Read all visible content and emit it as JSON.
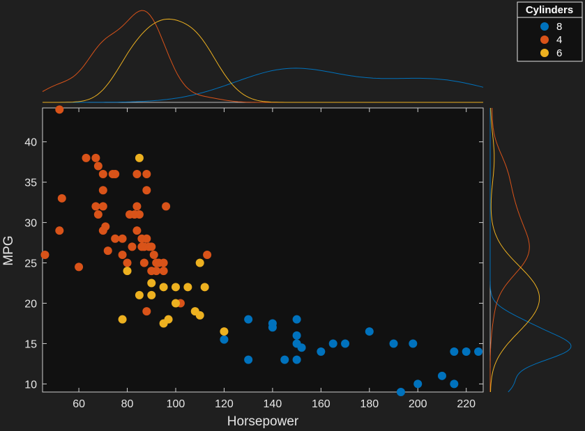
{
  "chart_data": {
    "type": "scatter",
    "xlabel": "Horsepower",
    "ylabel": "MPG",
    "xlim": [
      45,
      227
    ],
    "ylim": [
      9,
      44.2
    ],
    "xticks": [
      60,
      80,
      100,
      120,
      140,
      160,
      180,
      200,
      220
    ],
    "yticks": [
      10,
      15,
      20,
      25,
      30,
      35,
      40
    ],
    "legend": {
      "title": "Cylinders",
      "position": "top-right"
    },
    "series": [
      {
        "name": "8",
        "color": "#0072bd",
        "points": [
          [
            120,
            15.5
          ],
          [
            130,
            13
          ],
          [
            130,
            18
          ],
          [
            140,
            17.5
          ],
          [
            140,
            17
          ],
          [
            145,
            13
          ],
          [
            150,
            18
          ],
          [
            150,
            16
          ],
          [
            150,
            15
          ],
          [
            150,
            13
          ],
          [
            152,
            14.5
          ],
          [
            160,
            14
          ],
          [
            165,
            15
          ],
          [
            170,
            15
          ],
          [
            180,
            16.5
          ],
          [
            190,
            15
          ],
          [
            198,
            15
          ],
          [
            193,
            9
          ],
          [
            200,
            10
          ],
          [
            210,
            11
          ],
          [
            215,
            10
          ],
          [
            215,
            14
          ],
          [
            220,
            14
          ],
          [
            225,
            14
          ]
        ]
      },
      {
        "name": "4",
        "color": "#d95319",
        "points": [
          [
            46,
            26
          ],
          [
            52,
            44
          ],
          [
            52,
            29
          ],
          [
            53,
            33
          ],
          [
            60,
            24.5
          ],
          [
            63,
            38
          ],
          [
            67,
            38
          ],
          [
            67,
            32
          ],
          [
            68,
            37
          ],
          [
            68,
            31
          ],
          [
            70,
            36
          ],
          [
            70,
            34
          ],
          [
            70,
            32
          ],
          [
            70,
            29
          ],
          [
            71,
            29.5
          ],
          [
            72,
            26.5
          ],
          [
            74,
            36
          ],
          [
            75,
            36
          ],
          [
            75,
            28
          ],
          [
            78,
            28
          ],
          [
            78,
            26
          ],
          [
            80,
            25
          ],
          [
            81,
            31
          ],
          [
            82,
            27
          ],
          [
            83,
            31
          ],
          [
            84,
            36
          ],
          [
            84,
            32
          ],
          [
            84,
            29
          ],
          [
            85,
            31
          ],
          [
            86,
            28
          ],
          [
            86,
            27
          ],
          [
            87,
            27
          ],
          [
            87,
            25
          ],
          [
            88,
            36
          ],
          [
            88,
            34
          ],
          [
            88,
            28
          ],
          [
            88,
            19
          ],
          [
            89,
            27
          ],
          [
            90,
            27
          ],
          [
            90,
            24
          ],
          [
            91,
            26
          ],
          [
            92,
            25
          ],
          [
            92,
            24
          ],
          [
            93,
            25
          ],
          [
            95,
            24
          ],
          [
            95,
            25
          ],
          [
            96,
            32
          ],
          [
            102,
            20
          ],
          [
            113,
            26
          ]
        ]
      },
      {
        "name": "6",
        "color": "#edb120",
        "points": [
          [
            78,
            18
          ],
          [
            80,
            24
          ],
          [
            85,
            38
          ],
          [
            85,
            21
          ],
          [
            90,
            22.5
          ],
          [
            90,
            21
          ],
          [
            95,
            22
          ],
          [
            95,
            17.5
          ],
          [
            97,
            18
          ],
          [
            100,
            22
          ],
          [
            100,
            20
          ],
          [
            105,
            22
          ],
          [
            108,
            19
          ],
          [
            110,
            25
          ],
          [
            110,
            18.5
          ],
          [
            112,
            22
          ],
          [
            120,
            16.5
          ]
        ]
      }
    ]
  }
}
